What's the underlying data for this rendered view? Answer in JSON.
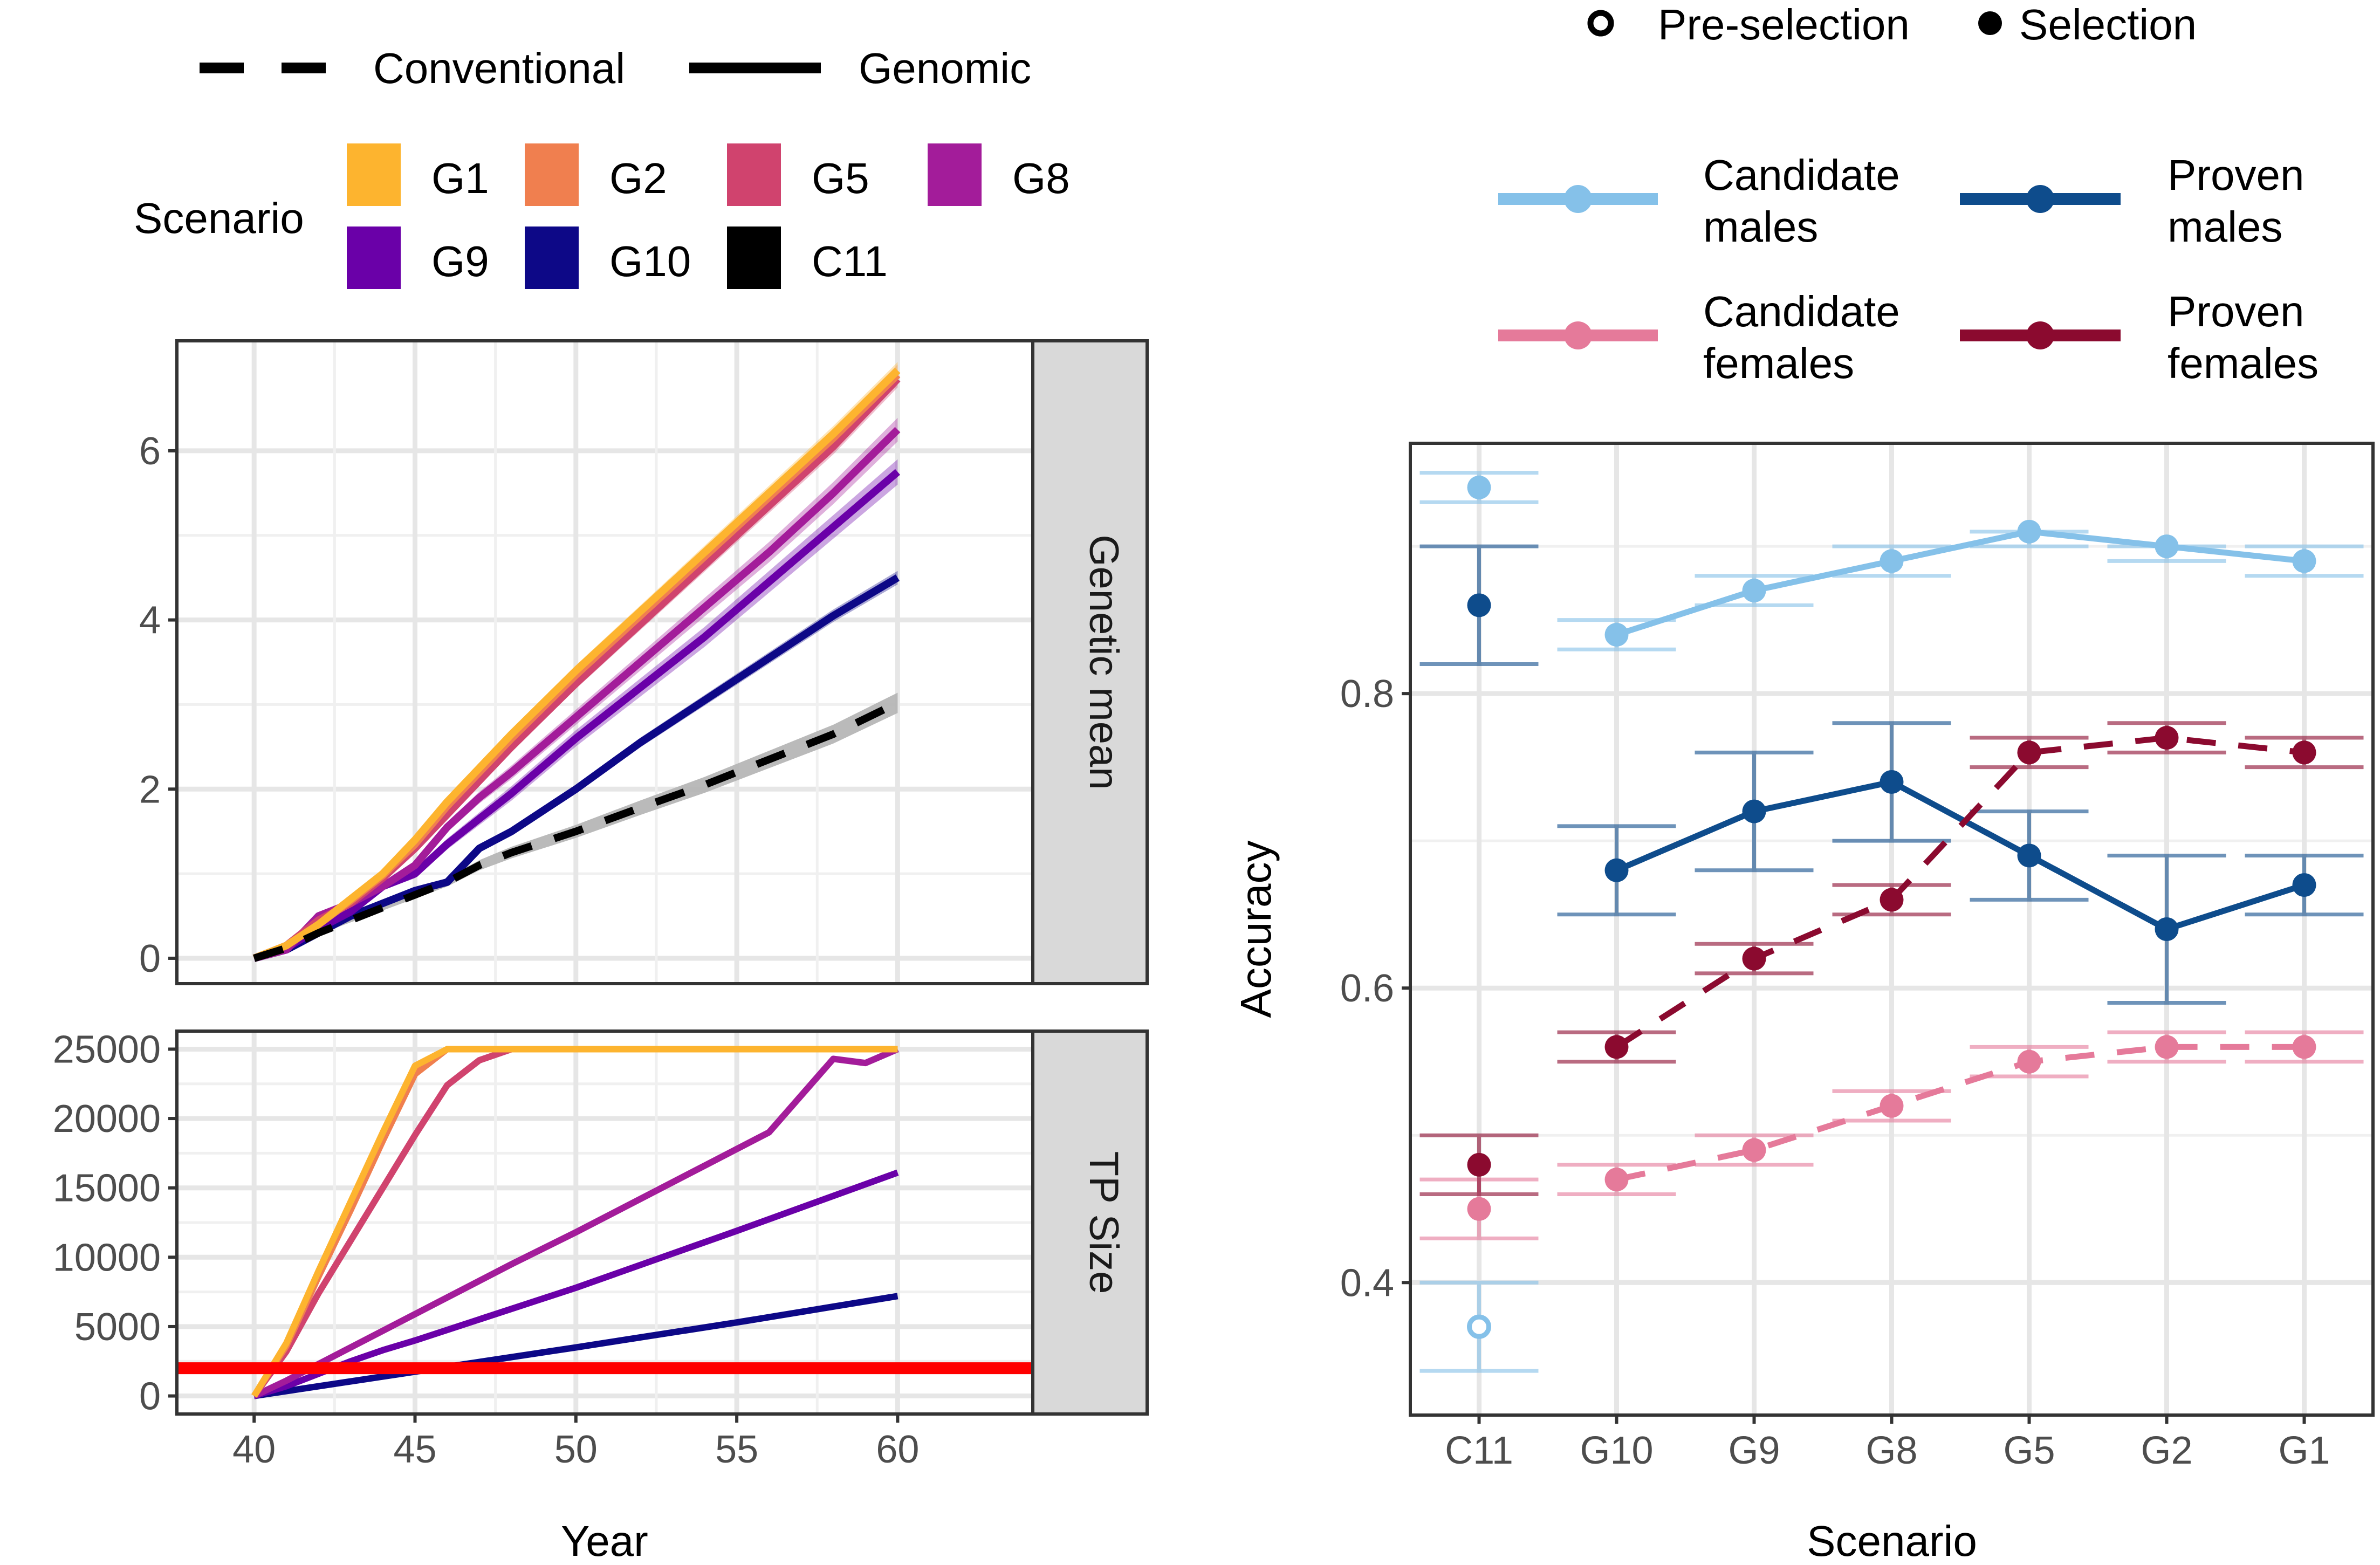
{
  "legend_top": {
    "linetype_entries": [
      {
        "label": "Conventional",
        "dash": "dashed"
      },
      {
        "label": "Genomic",
        "dash": "solid"
      }
    ],
    "scenario_title": "Scenario",
    "scenario_entries": [
      {
        "label": "G1",
        "color": "#FDB42F"
      },
      {
        "label": "G2",
        "color": "#F07F4F"
      },
      {
        "label": "G5",
        "color": "#D0436E"
      },
      {
        "label": "G8",
        "color": "#A31C9A"
      },
      {
        "label": "G9",
        "color": "#6A00A8"
      },
      {
        "label": "G10",
        "color": "#0D0887"
      },
      {
        "label": "C11",
        "color": "#000000"
      }
    ]
  },
  "legend_right": {
    "shape_entries": [
      {
        "label": "Pre-selection",
        "shape": "open-circle"
      },
      {
        "label": "Selection",
        "shape": "filled-circle"
      }
    ],
    "group_entries": [
      {
        "line1": "Candidate",
        "line2": "males",
        "color": "#85C1E9"
      },
      {
        "line1": "Proven",
        "line2": "males",
        "color": "#0E4C8C"
      },
      {
        "line1": "Candidate",
        "line2": "females",
        "color": "#E57A9A"
      },
      {
        "line1": "Proven",
        "line2": "females",
        "color": "#8B0A2F"
      }
    ]
  },
  "colors": {
    "threshold": "#FF0000",
    "conventional_ribbon": "#B3B3B3",
    "strip_fill": "#D9D9D9",
    "grid": "#E6E6E6"
  },
  "chart_data": [
    {
      "type": "line",
      "panel": "Genetic mean",
      "strip_label": "Genetic mean",
      "xlabel": "Year",
      "xlim": [
        37.6,
        64.2
      ],
      "xticks": [
        40,
        45,
        50,
        55,
        60
      ],
      "ylim": [
        -0.3,
        7.3
      ],
      "yticks": [
        0,
        2,
        4,
        6
      ],
      "series": [
        {
          "name": "G1",
          "linetype": "solid",
          "x": [
            40,
            41,
            42,
            43,
            44,
            45,
            46,
            47,
            48,
            50,
            52,
            54,
            56,
            58,
            60
          ],
          "y": [
            0,
            0.15,
            0.4,
            0.7,
            1.0,
            1.4,
            1.85,
            2.25,
            2.65,
            3.4,
            4.1,
            4.8,
            5.5,
            6.2,
            6.95
          ],
          "band": 0.1
        },
        {
          "name": "G2",
          "linetype": "solid",
          "x": [
            40,
            41,
            42,
            43,
            44,
            45,
            46,
            47,
            48,
            50,
            52,
            54,
            56,
            58,
            60
          ],
          "y": [
            0,
            0.15,
            0.4,
            0.68,
            0.98,
            1.35,
            1.8,
            2.2,
            2.6,
            3.35,
            4.05,
            4.75,
            5.45,
            6.15,
            6.9
          ],
          "band": 0.12
        },
        {
          "name": "G5",
          "linetype": "solid",
          "x": [
            40,
            41,
            42,
            43,
            44,
            45,
            46,
            47,
            48,
            50,
            52,
            54,
            56,
            58,
            60
          ],
          "y": [
            0,
            0.15,
            0.45,
            0.65,
            0.95,
            1.3,
            1.7,
            2.1,
            2.5,
            3.25,
            3.95,
            4.65,
            5.35,
            6.05,
            6.85
          ],
          "band": 0.1
        },
        {
          "name": "G8",
          "linetype": "solid",
          "x": [
            40,
            41,
            42,
            43,
            44,
            45,
            46,
            47,
            48,
            50,
            52,
            54,
            56,
            58,
            60
          ],
          "y": [
            0,
            0.1,
            0.5,
            0.65,
            0.85,
            1.1,
            1.55,
            1.9,
            2.2,
            2.85,
            3.5,
            4.15,
            4.8,
            5.5,
            6.25
          ],
          "band": 0.14
        },
        {
          "name": "G9",
          "linetype": "solid",
          "x": [
            40,
            41,
            42,
            43,
            44,
            45,
            46,
            47,
            48,
            50,
            52,
            54,
            56,
            58,
            60
          ],
          "y": [
            0,
            0.12,
            0.35,
            0.55,
            0.85,
            1.0,
            1.35,
            1.65,
            1.95,
            2.6,
            3.2,
            3.8,
            4.45,
            5.1,
            5.75
          ],
          "band": 0.15
        },
        {
          "name": "G10",
          "linetype": "solid",
          "x": [
            40,
            41,
            42,
            43,
            44,
            45,
            46,
            47,
            48,
            50,
            52,
            54,
            56,
            58,
            60
          ],
          "y": [
            0,
            0.1,
            0.3,
            0.5,
            0.65,
            0.8,
            0.9,
            1.3,
            1.5,
            2.0,
            2.55,
            3.05,
            3.55,
            4.05,
            4.5
          ],
          "band": 0.08
        },
        {
          "name": "C11",
          "linetype": "dashed",
          "x": [
            40,
            41,
            42,
            43,
            44,
            45,
            46,
            47,
            48,
            50,
            52,
            54,
            56,
            58,
            60
          ],
          "y": [
            0,
            0.12,
            0.3,
            0.45,
            0.6,
            0.75,
            0.9,
            1.1,
            1.25,
            1.5,
            1.78,
            2.05,
            2.35,
            2.65,
            3.02
          ],
          "band": 0.12
        }
      ]
    },
    {
      "type": "line",
      "panel": "TP Size",
      "strip_label": "TP Size",
      "xlabel": "Year",
      "xlim": [
        37.6,
        64.2
      ],
      "xticks": [
        40,
        45,
        50,
        55,
        60
      ],
      "ylim": [
        -1300,
        26300
      ],
      "yticks": [
        0,
        5000,
        10000,
        15000,
        20000,
        25000
      ],
      "threshold": 2000,
      "series": [
        {
          "name": "G1",
          "x": [
            40,
            41,
            42,
            43,
            44,
            45,
            46,
            47,
            48,
            49,
            50,
            55,
            60
          ],
          "y": [
            0,
            3800,
            9000,
            14000,
            19000,
            23800,
            25000,
            25000,
            25000,
            25000,
            25000,
            25000,
            25000
          ]
        },
        {
          "name": "G2",
          "x": [
            40,
            41,
            42,
            43,
            44,
            45,
            46,
            47,
            48,
            49,
            50,
            55,
            60
          ],
          "y": [
            0,
            3600,
            8600,
            13400,
            18400,
            23200,
            25000,
            25000,
            25000,
            25000,
            25000,
            25000,
            25000
          ]
        },
        {
          "name": "G5",
          "x": [
            40,
            41,
            42,
            43,
            44,
            45,
            46,
            47,
            48,
            49,
            50,
            55,
            60
          ],
          "y": [
            0,
            3200,
            7400,
            11200,
            15000,
            18800,
            22400,
            24200,
            25000,
            25000,
            25000,
            25000,
            25000
          ]
        },
        {
          "name": "G8",
          "x": [
            40,
            41,
            42,
            43,
            44,
            45,
            46,
            47,
            48,
            50,
            52,
            54,
            56,
            58,
            59,
            60
          ],
          "y": [
            0,
            1100,
            2300,
            3500,
            4700,
            5900,
            7100,
            8300,
            9500,
            11800,
            14200,
            16600,
            19000,
            24300,
            24000,
            25000
          ]
        },
        {
          "name": "G9",
          "x": [
            40,
            41,
            42,
            43,
            44,
            45,
            50,
            55,
            60
          ],
          "y": [
            0,
            700,
            1600,
            2500,
            3300,
            4000,
            7800,
            11900,
            16100
          ]
        },
        {
          "name": "G10",
          "x": [
            40,
            41,
            42,
            43,
            44,
            45,
            50,
            55,
            60
          ],
          "y": [
            0,
            350,
            700,
            1050,
            1400,
            1750,
            3500,
            5300,
            7200
          ]
        }
      ]
    },
    {
      "type": "scatter",
      "panel": "Accuracy",
      "xlabel": "Scenario",
      "ylabel": "Accuracy",
      "categories": [
        "C11",
        "G10",
        "G9",
        "G8",
        "G5",
        "G2",
        "G1"
      ],
      "ylim": [
        0.31,
        0.97
      ],
      "yticks": [
        0.4,
        0.6,
        0.8
      ],
      "series": [
        {
          "name": "Candidate males",
          "color": "#85C1E9",
          "linetype": "solid",
          "selection_values": [
            0.94,
            0.84,
            0.87,
            0.89,
            0.91,
            0.9,
            0.89
          ],
          "lower": [
            0.93,
            0.83,
            0.86,
            0.88,
            0.9,
            0.89,
            0.88
          ],
          "upper": [
            0.95,
            0.85,
            0.88,
            0.9,
            0.91,
            0.9,
            0.9
          ],
          "preselection": {
            "category": "C11",
            "value": 0.37,
            "lower": 0.34,
            "upper": 0.4
          }
        },
        {
          "name": "Proven males",
          "color": "#0E4C8C",
          "linetype": "solid",
          "selection_values": [
            0.86,
            0.68,
            0.72,
            0.74,
            0.69,
            0.64,
            0.67
          ],
          "lower": [
            0.82,
            0.65,
            0.68,
            0.7,
            0.66,
            0.59,
            0.65
          ],
          "upper": [
            0.9,
            0.71,
            0.76,
            0.78,
            0.72,
            0.69,
            0.69
          ]
        },
        {
          "name": "Candidate females",
          "color": "#E57A9A",
          "linetype": "dashed",
          "selection_values": [
            0.45,
            0.47,
            0.49,
            0.52,
            0.55,
            0.56,
            0.56
          ],
          "lower": [
            0.43,
            0.46,
            0.48,
            0.51,
            0.54,
            0.55,
            0.55
          ],
          "upper": [
            0.47,
            0.48,
            0.5,
            0.53,
            0.56,
            0.57,
            0.57
          ]
        },
        {
          "name": "Proven females",
          "color": "#8B0A2F",
          "linetype": "dashed",
          "selection_values": [
            0.48,
            0.56,
            0.62,
            0.66,
            0.76,
            0.77,
            0.76
          ],
          "lower": [
            0.46,
            0.55,
            0.61,
            0.65,
            0.75,
            0.76,
            0.75
          ],
          "upper": [
            0.5,
            0.57,
            0.63,
            0.67,
            0.77,
            0.78,
            0.77
          ]
        }
      ]
    }
  ]
}
